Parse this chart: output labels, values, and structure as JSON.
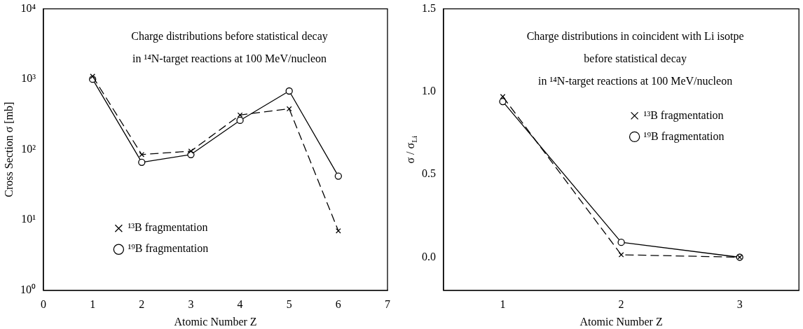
{
  "chart_data": [
    {
      "type": "line",
      "title": "Charge distributions before statistical decay\nin ¹⁴N-target reactions at 100 MeV/nucleon",
      "xlabel": "Atomic Number Z",
      "ylabel": "Cross Section σ [mb]",
      "log": "y",
      "legend": "bottom left",
      "x": [
        1,
        2,
        3,
        4,
        5,
        6
      ],
      "xlim": [
        0,
        7
      ],
      "xticks": [
        0,
        1,
        2,
        3,
        4,
        5,
        6,
        7
      ],
      "ylim": [
        1,
        10000
      ],
      "yticks": [
        {
          "value": 1,
          "label": "10⁰"
        },
        {
          "value": 10,
          "label": "10¹"
        },
        {
          "value": 100,
          "label": "10²"
        },
        {
          "value": 1000,
          "label": "10³"
        },
        {
          "value": 10000,
          "label": "10⁴"
        }
      ],
      "series": [
        {
          "name": "¹³B fragmentation",
          "color": "#000000",
          "marker": "cross",
          "line_style": "dashed",
          "values": [
            1100,
            85,
            95,
            310,
            380,
            7
          ]
        },
        {
          "name": "¹⁹B fragmentation",
          "color": "#000000",
          "marker": "circle",
          "line_style": "solid",
          "values": [
            1000,
            66,
            85,
            260,
            680,
            42
          ]
        }
      ]
    },
    {
      "type": "line",
      "title": "Charge distributions in coincident with Li isotpe\nbefore statistical decay\nin ¹⁴N-target reactions at 100 MeV/nucleon",
      "xlabel": "Atomic Number Z",
      "ylabel": "σ / σ$_{Li}$",
      "legend": "right",
      "x": [
        1,
        2,
        3
      ],
      "xlim": [
        0.5,
        3.5
      ],
      "xticks": [
        1,
        2,
        3
      ],
      "ylim": [
        -0.2,
        1.5
      ],
      "yticks": [
        {
          "value": 0,
          "label": "0.0"
        },
        {
          "value": 0.5,
          "label": "0.5"
        },
        {
          "value": 1,
          "label": "1.0"
        },
        {
          "value": 1.5,
          "label": "1.5"
        }
      ],
      "series": [
        {
          "name": "¹³B fragmentation",
          "color": "#000000",
          "marker": "cross",
          "line_style": "dashed",
          "values": [
            0.97,
            0.015,
            0.0
          ]
        },
        {
          "name": "¹⁹B fragmentation",
          "color": "#000000",
          "marker": "circle",
          "line_style": "solid",
          "values": [
            0.94,
            0.09,
            0.0
          ]
        }
      ]
    }
  ]
}
